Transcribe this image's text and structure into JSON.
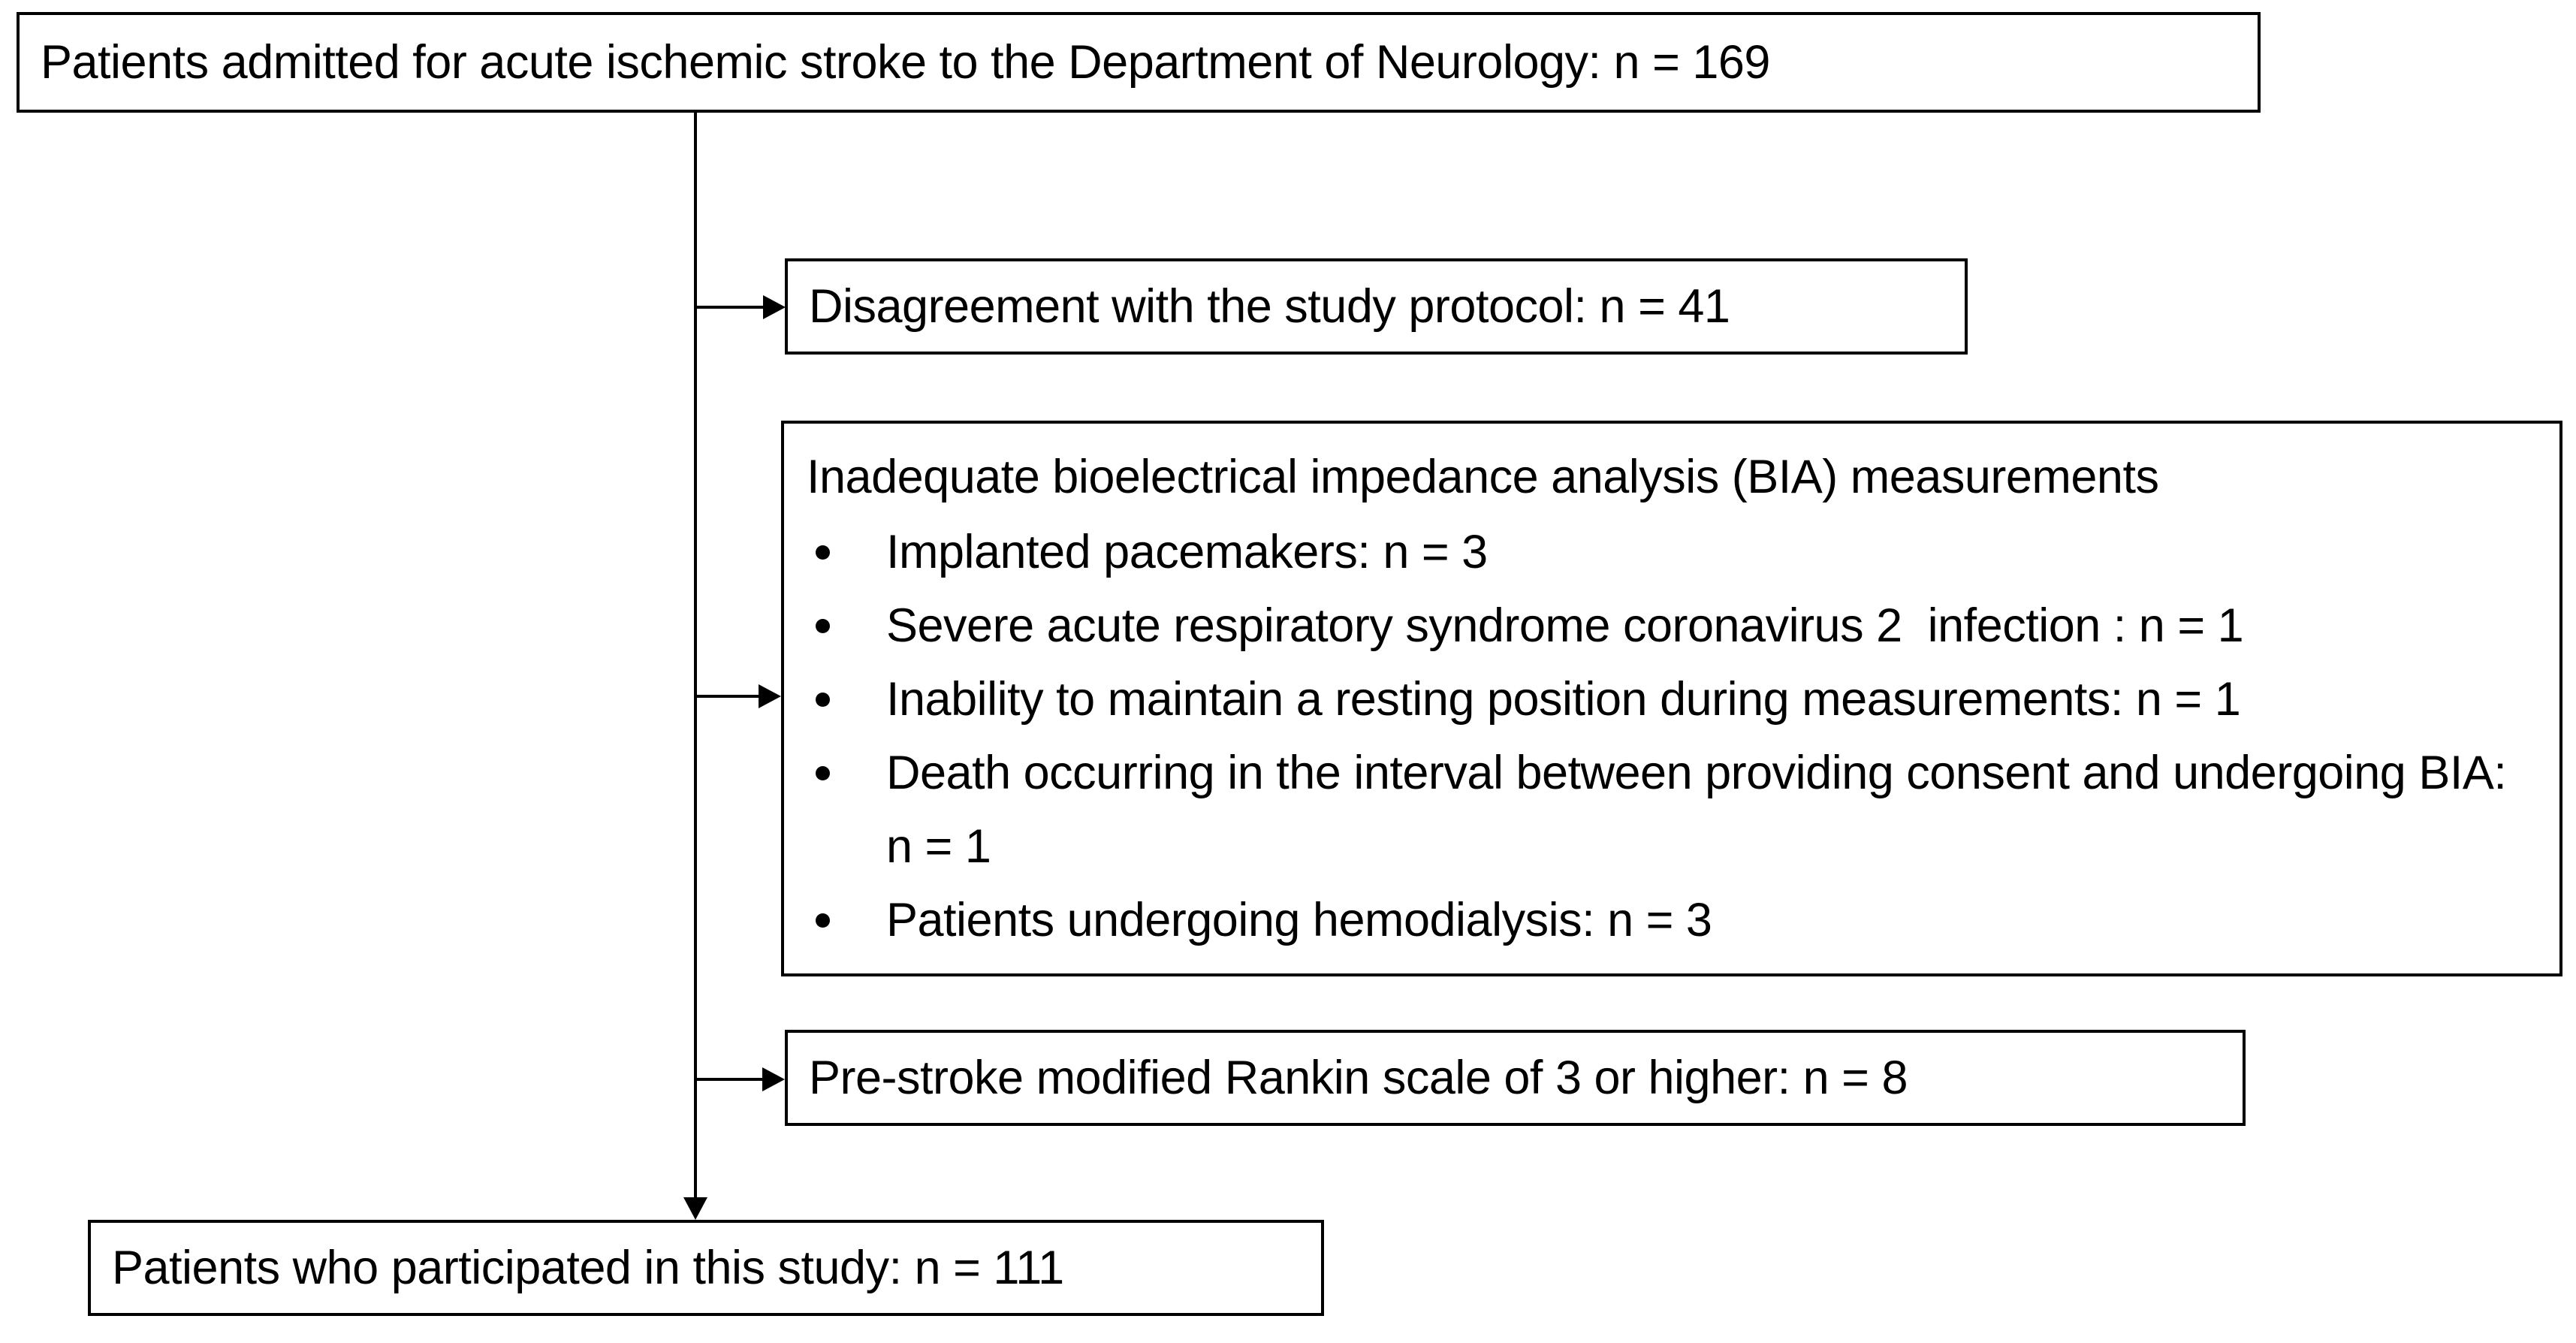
{
  "flowchart": {
    "colors": {
      "line": "#000000",
      "text": "#000000",
      "box_background": "#ffffff",
      "page_background": "#ffffff"
    },
    "source_box": {
      "label": "Patients admitted for acute ischemic stroke to the Department of Neurology: n = 169"
    },
    "exclusion_boxes": [
      {
        "label": "Disagreement with the study protocol: n = 41"
      },
      {
        "title": "Inadequate bioelectrical impedance analysis (BIA) measurements",
        "bullets": [
          "Implanted pacemakers: n = 3",
          "Severe acute respiratory syndrome coronavirus 2  infection : n = 1",
          "Inability to maintain a resting position during measurements: n = 1",
          "Death occurring in the interval between providing consent and undergoing BIA: n = 1",
          "Patients undergoing hemodialysis: n = 3"
        ]
      },
      {
        "label": "Pre-stroke modified Rankin scale of 3 or higher: n = 8"
      }
    ],
    "result_box": {
      "label": "Patients who participated in this study: n = 111"
    }
  }
}
